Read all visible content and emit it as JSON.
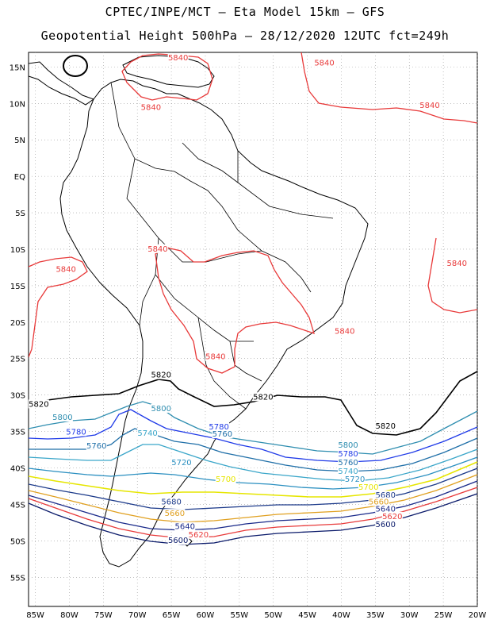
{
  "title": {
    "line1": "CPTEC/INPE/MCT –  Eta Model 15km – GFS",
    "line2": "Geopotential Height 500hPa – 28/12/2020 12UTC fct=249h"
  },
  "map": {
    "lon_range": [
      -86,
      -20
    ],
    "lat_range": [
      17,
      -59
    ],
    "lat_ticks": [
      "15N",
      "10N",
      "5N",
      "EQ",
      "5S",
      "10S",
      "15S",
      "20S",
      "25S",
      "30S",
      "35S",
      "40S",
      "45S",
      "50S",
      "55S"
    ],
    "lon_ticks": [
      "85W",
      "80W",
      "75W",
      "70W",
      "65W",
      "60W",
      "55W",
      "50W",
      "45W",
      "40W",
      "35W",
      "30W",
      "25W",
      "20W"
    ],
    "grid": "dotted",
    "contour_labels": [
      {
        "text": "5840",
        "color": "#e83a3a",
        "lon": -64.0,
        "lat": 16.0
      },
      {
        "text": "5840",
        "color": "#e83a3a",
        "lon": -42.5,
        "lat": 15.3
      },
      {
        "text": "5840",
        "color": "#e83a3a",
        "lon": -68.0,
        "lat": 9.2
      },
      {
        "text": "5840",
        "color": "#e83a3a",
        "lon": -27.0,
        "lat": 9.5
      },
      {
        "text": "5840",
        "color": "#e83a3a",
        "lon": -67.0,
        "lat": -10.2
      },
      {
        "text": "5840",
        "color": "#e83a3a",
        "lon": -80.5,
        "lat": -13.0
      },
      {
        "text": "5840",
        "color": "#e83a3a",
        "lon": -23.0,
        "lat": -12.2
      },
      {
        "text": "5840",
        "color": "#e83a3a",
        "lon": -39.5,
        "lat": -21.5
      },
      {
        "text": "5840",
        "color": "#e83a3a",
        "lon": -58.5,
        "lat": -25.0
      },
      {
        "text": "5820",
        "color": "#000000",
        "lon": -66.5,
        "lat": -27.5
      },
      {
        "text": "5820",
        "color": "#000000",
        "lon": -84.5,
        "lat": -31.5
      },
      {
        "text": "5820",
        "color": "#000000",
        "lon": -51.5,
        "lat": -30.5
      },
      {
        "text": "5820",
        "color": "#000000",
        "lon": -33.5,
        "lat": -34.5
      },
      {
        "text": "5800",
        "color": "#2f8eb0",
        "lon": -81.0,
        "lat": -33.3
      },
      {
        "text": "5800",
        "color": "#2f8eb0",
        "lon": -66.5,
        "lat": -32.1
      },
      {
        "text": "5800",
        "color": "#2f8eb0",
        "lon": -39.0,
        "lat": -37.1
      },
      {
        "text": "5780",
        "color": "#1f3ae8",
        "lon": -79.0,
        "lat": -35.3
      },
      {
        "text": "5780",
        "color": "#1f3ae8",
        "lon": -58.0,
        "lat": -34.6
      },
      {
        "text": "5780",
        "color": "#1f3ae8",
        "lon": -39.0,
        "lat": -38.3
      },
      {
        "text": "5760",
        "color": "#1f6fa8",
        "lon": -76.0,
        "lat": -37.2
      },
      {
        "text": "5760",
        "color": "#1f6fa8",
        "lon": -57.5,
        "lat": -35.6
      },
      {
        "text": "5760",
        "color": "#1f6fa8",
        "lon": -39.0,
        "lat": -39.5
      },
      {
        "text": "5740",
        "color": "#3aa6c9",
        "lon": -68.5,
        "lat": -35.5
      },
      {
        "text": "5740",
        "color": "#3aa6c9",
        "lon": -39.0,
        "lat": -40.7
      },
      {
        "text": "5720",
        "color": "#2a8fc0",
        "lon": -63.5,
        "lat": -39.5
      },
      {
        "text": "5720",
        "color": "#2a8fc0",
        "lon": -38.0,
        "lat": -41.8
      },
      {
        "text": "5700",
        "color": "#e6e600",
        "lon": -57.0,
        "lat": -41.8
      },
      {
        "text": "5700",
        "color": "#e6e600",
        "lon": -36.0,
        "lat": -42.9
      },
      {
        "text": "5680",
        "color": "#1c3a8a",
        "lon": -65.0,
        "lat": -44.9
      },
      {
        "text": "5680",
        "color": "#1c3a8a",
        "lon": -33.5,
        "lat": -44.0
      },
      {
        "text": "5660",
        "color": "#e0a020",
        "lon": -64.5,
        "lat": -46.5
      },
      {
        "text": "5660",
        "color": "#e0a020",
        "lon": -34.5,
        "lat": -44.9
      },
      {
        "text": "5640",
        "color": "#1a2a8a",
        "lon": -63.0,
        "lat": -48.3
      },
      {
        "text": "5640",
        "color": "#1a2a8a",
        "lon": -33.5,
        "lat": -45.9
      },
      {
        "text": "5620",
        "color": "#e83a3a",
        "lon": -61.0,
        "lat": -49.4
      },
      {
        "text": "5620",
        "color": "#e83a3a",
        "lon": -32.5,
        "lat": -46.9
      },
      {
        "text": "5600",
        "color": "#0a1a6a",
        "lon": -64.0,
        "lat": -50.2
      },
      {
        "text": "5600",
        "color": "#0a1a6a",
        "lon": -33.5,
        "lat": -48.0
      }
    ]
  }
}
